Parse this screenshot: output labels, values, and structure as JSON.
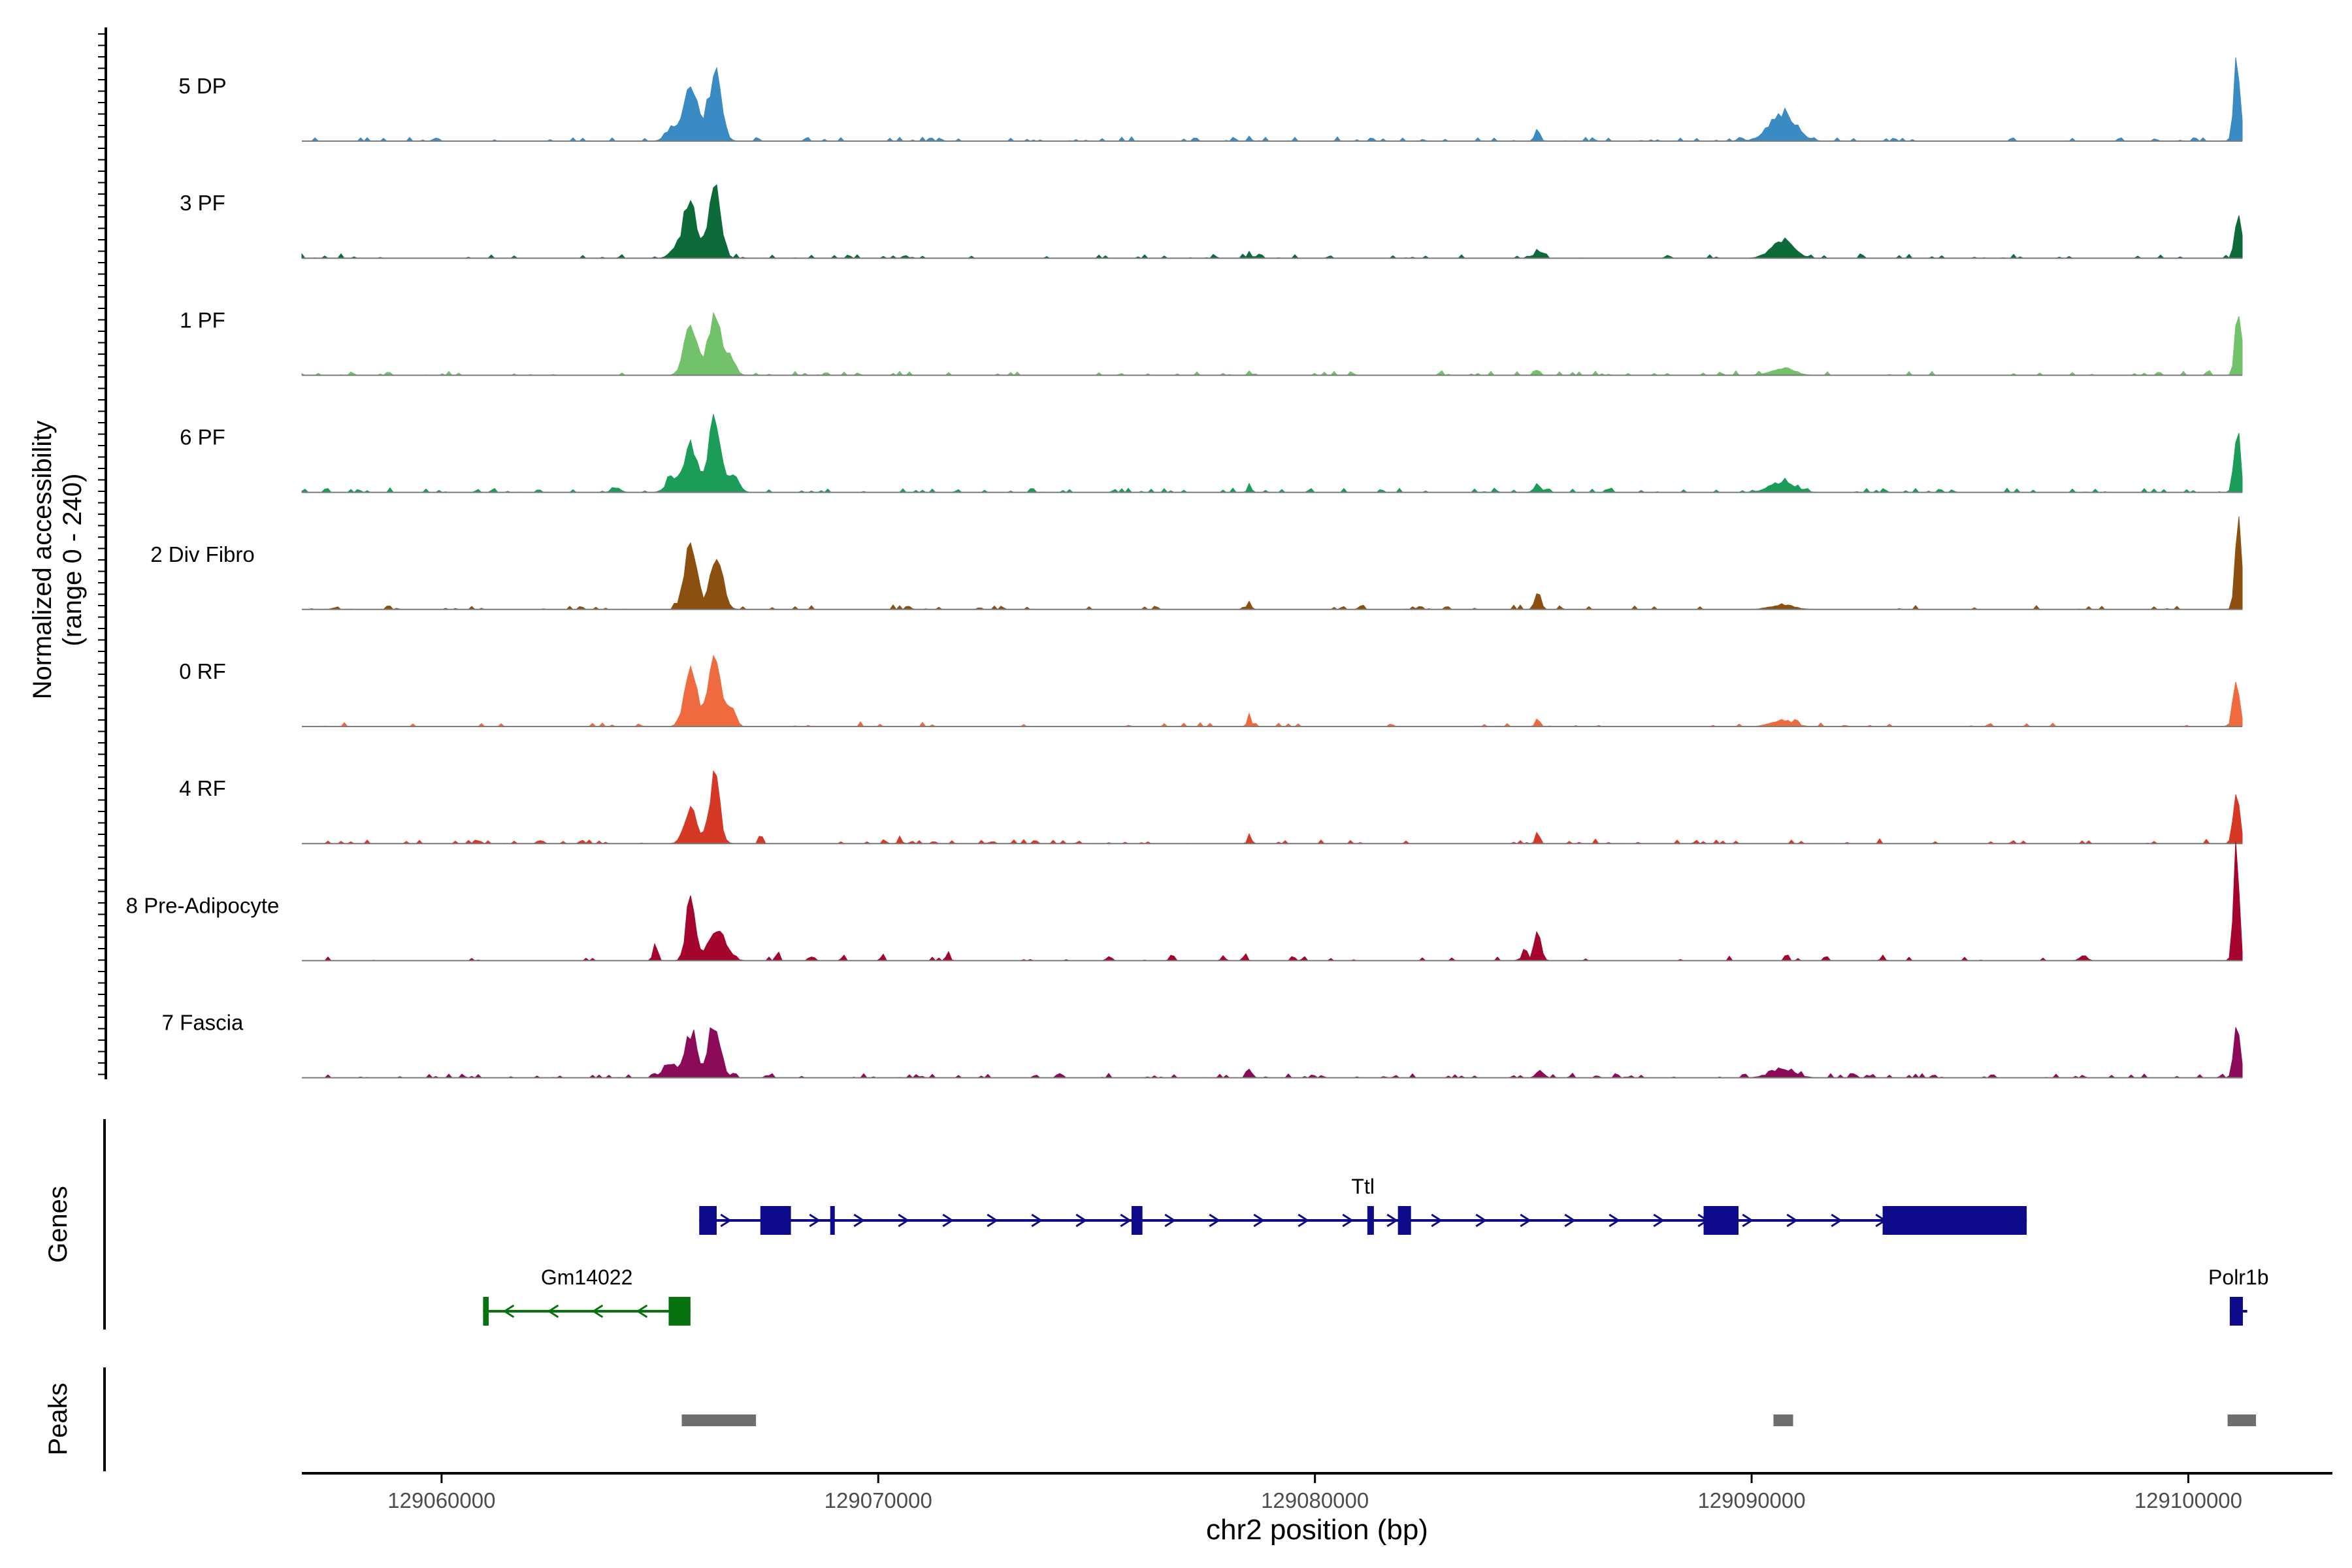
{
  "chart_data": {
    "type": "area",
    "title": "",
    "xlabel": "chr2 position (bp)",
    "ylabel_line1": "Normalized accessibility",
    "ylabel_line2": "(range 0 - 240)",
    "xlim": [
      129056800,
      129103300
    ],
    "ylim": [
      0,
      240
    ],
    "x_ticks": [
      129060000,
      129070000,
      129080000,
      129090000,
      129100000
    ],
    "x_tick_labels": [
      "129060000",
      "129070000",
      "129080000",
      "129090000",
      "129100000"
    ],
    "series": [
      {
        "name": "5 DP",
        "color": "#3a8ac4",
        "noise": 0.03,
        "peaks": [
          [
            129065700,
            150,
            140
          ],
          [
            129066250,
            150,
            160
          ],
          [
            129065300,
            150,
            35
          ],
          [
            129090700,
            300,
            70
          ],
          [
            129101120,
            70,
            210
          ],
          [
            129085100,
            60,
            25
          ],
          [
            129078500,
            40,
            12
          ],
          [
            129081300,
            40,
            10
          ]
        ]
      },
      {
        "name": "3 PF",
        "color": "#0c6b38",
        "noise": 0.03,
        "peaks": [
          [
            129065700,
            140,
            140
          ],
          [
            129066250,
            140,
            160
          ],
          [
            129065400,
            150,
            25
          ],
          [
            129090700,
            250,
            45
          ],
          [
            129101150,
            70,
            120
          ],
          [
            129085100,
            60,
            25
          ],
          [
            129078500,
            40,
            20
          ]
        ]
      },
      {
        "name": "1 PF",
        "color": "#72c16b",
        "noise": 0.025,
        "peaks": [
          [
            129065700,
            140,
            140
          ],
          [
            129066250,
            140,
            150
          ],
          [
            129066600,
            120,
            40
          ],
          [
            129090700,
            250,
            18
          ],
          [
            129101150,
            70,
            160
          ],
          [
            129085100,
            60,
            12
          ],
          [
            129078500,
            40,
            10
          ]
        ]
      },
      {
        "name": "6 PF",
        "color": "#1b9d59",
        "noise": 0.035,
        "peaks": [
          [
            129065700,
            150,
            115
          ],
          [
            129066250,
            140,
            165
          ],
          [
            129065300,
            150,
            35
          ],
          [
            129066700,
            120,
            40
          ],
          [
            129090700,
            280,
            25
          ],
          [
            129101120,
            70,
            150
          ],
          [
            129085100,
            80,
            20
          ],
          [
            129078500,
            40,
            22
          ],
          [
            129064000,
            100,
            12
          ]
        ]
      },
      {
        "name": "2 Div Fibro",
        "color": "#8b5010",
        "noise": 0.025,
        "peaks": [
          [
            129065700,
            140,
            150
          ],
          [
            129066300,
            140,
            125
          ],
          [
            129101150,
            70,
            200
          ],
          [
            129085100,
            70,
            35
          ],
          [
            129078500,
            40,
            18
          ],
          [
            129090700,
            250,
            12
          ]
        ]
      },
      {
        "name": "0 RF",
        "color": "#f06a40",
        "noise": 0.02,
        "peaks": [
          [
            129065700,
            140,
            140
          ],
          [
            129066250,
            140,
            165
          ],
          [
            129066600,
            110,
            50
          ],
          [
            129101100,
            70,
            120
          ],
          [
            129078500,
            40,
            35
          ],
          [
            129085100,
            50,
            20
          ],
          [
            129090700,
            250,
            15
          ]
        ]
      },
      {
        "name": "4 RF",
        "color": "#d63826",
        "noise": 0.025,
        "peaks": [
          [
            129065700,
            140,
            90
          ],
          [
            129066250,
            120,
            155
          ],
          [
            129101100,
            70,
            130
          ],
          [
            129078500,
            40,
            25
          ],
          [
            129085100,
            50,
            20
          ],
          [
            129067300,
            40,
            20
          ],
          [
            129070500,
            40,
            15
          ],
          [
            129060800,
            50,
            10
          ]
        ]
      },
      {
        "name": "8 Pre-Adipocyte",
        "color": "#a5052c",
        "noise": 0.015,
        "peaks": [
          [
            129065700,
            100,
            155
          ],
          [
            129066300,
            200,
            75
          ],
          [
            129101100,
            60,
            310
          ],
          [
            129085100,
            80,
            65
          ],
          [
            129084800,
            50,
            35
          ],
          [
            129064900,
            50,
            40
          ],
          [
            129067700,
            40,
            22
          ],
          [
            129071600,
            40,
            28
          ],
          [
            129070100,
            40,
            15
          ],
          [
            129078400,
            40,
            18
          ],
          [
            129090800,
            40,
            18
          ],
          [
            129097600,
            80,
            15
          ],
          [
            129068500,
            40,
            12
          ],
          [
            129069200,
            40,
            14
          ],
          [
            129075300,
            40,
            14
          ],
          [
            129076700,
            40,
            12
          ],
          [
            129077900,
            40,
            14
          ],
          [
            129079500,
            40,
            14
          ],
          [
            129091700,
            40,
            15
          ],
          [
            129093000,
            40,
            14
          ]
        ]
      },
      {
        "name": "7 Fascia",
        "color": "#8c0a5a",
        "noise": 0.04,
        "peaks": [
          [
            129065700,
            140,
            110
          ],
          [
            129066250,
            140,
            130
          ],
          [
            129065200,
            150,
            30
          ],
          [
            129101120,
            70,
            140
          ],
          [
            129078500,
            60,
            20
          ],
          [
            129085100,
            60,
            15
          ],
          [
            129090700,
            280,
            20
          ]
        ]
      }
    ],
    "genes_track_label": "Genes",
    "genes": [
      {
        "name": "Ttl",
        "color": "#0d0b8a",
        "strand": "+",
        "start": 129065900,
        "end": 129096300,
        "exons": [
          [
            129065900,
            129066300
          ],
          [
            129067300,
            129068000
          ],
          [
            129068900,
            129068960
          ],
          [
            129075800,
            129076050
          ],
          [
            129081200,
            129081350
          ],
          [
            129081900,
            129082200
          ],
          [
            129088900,
            129089700
          ],
          [
            129093000,
            129096300
          ]
        ]
      },
      {
        "name": "Gm14022",
        "color": "#07720f",
        "strand": "-",
        "start": 129060950,
        "end": 129065700,
        "exons": [
          [
            129060950,
            129061080
          ],
          [
            129065200,
            129065700
          ]
        ]
      },
      {
        "name": "Polr1b",
        "color": "#0d0b8a",
        "strand": "+",
        "start": 129100950,
        "end": 129101350,
        "exons": [
          [
            129100950,
            129101250
          ]
        ]
      }
    ],
    "peaks_track_label": "Peaks",
    "peak_regions": [
      [
        129065500,
        129067200
      ],
      [
        129090500,
        129090950
      ],
      [
        129100900,
        129101550
      ]
    ]
  }
}
